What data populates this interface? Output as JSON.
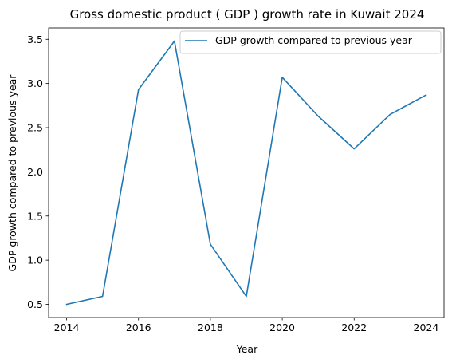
{
  "chart_data": {
    "type": "line",
    "title": "Gross domestic product ( GDP ) growth rate in Kuwait 2024",
    "xlabel": "Year",
    "ylabel": "GDP growth compared to previous year",
    "x": [
      2014,
      2015,
      2016,
      2017,
      2018,
      2019,
      2020,
      2021,
      2022,
      2023,
      2024
    ],
    "series": [
      {
        "name": "GDP growth compared to previous year",
        "values": [
          0.5,
          0.59,
          2.93,
          3.48,
          1.18,
          0.59,
          3.07,
          2.63,
          2.26,
          2.65,
          2.87
        ]
      }
    ],
    "x_ticks": [
      "2014",
      "2016",
      "2018",
      "2020",
      "2022",
      "2024"
    ],
    "y_ticks": [
      "0.5",
      "1.0",
      "1.5",
      "2.0",
      "2.5",
      "3.0",
      "3.5"
    ],
    "xlim": [
      2013.5,
      2024.5
    ],
    "ylim": [
      0.351,
      3.629
    ],
    "grid": false,
    "legend": "top-right",
    "colors": {
      "line": "#1f77b4",
      "axes": "#000000",
      "legend_border": "#cccccc"
    }
  }
}
